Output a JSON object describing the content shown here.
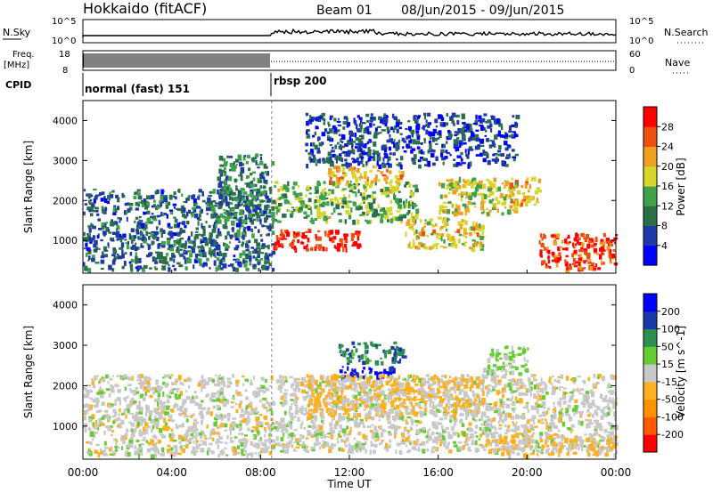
{
  "header": {
    "station": "Hokkaido (fitACF)",
    "beam": "Beam 01",
    "dates": "08/Jun/2015 - 09/Jun/2015"
  },
  "panels": {
    "noise": {
      "left_label": "N.Sky",
      "right_label": "N.Search",
      "left_ticks": [
        "10^5",
        "10^0"
      ],
      "right_ticks": [
        "10^5",
        "10^0"
      ]
    },
    "freq": {
      "label_line1": "Freq.",
      "label_line2": "[MHz]",
      "left_ticks": [
        "18",
        "8"
      ],
      "right_label": "Nave",
      "right_ticks": [
        "60",
        "0"
      ]
    },
    "cpid": {
      "label": "CPID",
      "modes": [
        {
          "name": "normal (fast) 151",
          "start_ut": 0.0
        },
        {
          "name": "rbsp 200",
          "start_ut": 8.5
        }
      ]
    }
  },
  "x_axis": {
    "label": "Time UT",
    "ticks": [
      "00:00",
      "04:00",
      "08:00",
      "12:00",
      "16:00",
      "20:00",
      "00:00"
    ],
    "range_hours": [
      0,
      24
    ]
  },
  "chart_data": [
    {
      "type": "heatmap",
      "title": "",
      "xlabel": "",
      "ylabel": "Slant Range [km]",
      "ylim": [
        180,
        4500
      ],
      "yticks": [
        "1000",
        "2000",
        "3000",
        "4000"
      ],
      "colorbar": {
        "label": "Power [dB]",
        "ticks": [
          "28",
          "24",
          "20",
          "16",
          "12",
          "8",
          "4"
        ],
        "range": [
          0,
          30
        ],
        "colors": [
          "#0000ff",
          "#1e3aa8",
          "#2a6e4a",
          "#3fa24a",
          "#d6d62a",
          "#f0a020",
          "#ee5010",
          "#ff0000"
        ]
      },
      "regions": [
        {
          "ut": [
            0.0,
            8.5
          ],
          "km": [
            300,
            2300
          ],
          "db": 8
        },
        {
          "ut": [
            6.0,
            8.5
          ],
          "km": [
            1500,
            3200
          ],
          "db": 10
        },
        {
          "ut": [
            8.5,
            12.5
          ],
          "km": [
            800,
            1300
          ],
          "db": 28
        },
        {
          "ut": [
            8.5,
            15.0
          ],
          "km": [
            1500,
            2500
          ],
          "db": 14
        },
        {
          "ut": [
            11.0,
            14.5
          ],
          "km": [
            2500,
            2900
          ],
          "db": 20
        },
        {
          "ut": [
            14.5,
            18.0
          ],
          "km": [
            800,
            1600
          ],
          "db": 18
        },
        {
          "ut": [
            16.0,
            19.5
          ],
          "km": [
            1700,
            2600
          ],
          "db": 17
        },
        {
          "ut": [
            19.0,
            20.5
          ],
          "km": [
            1900,
            2600
          ],
          "db": 20
        },
        {
          "ut": [
            20.5,
            24.0
          ],
          "km": [
            300,
            1200
          ],
          "db": 26
        },
        {
          "ut": [
            10.0,
            19.5
          ],
          "km": [
            2900,
            4200
          ],
          "db": 6
        }
      ]
    },
    {
      "type": "heatmap",
      "title": "",
      "xlabel": "Time UT",
      "ylabel": "Slant Range [km]",
      "ylim": [
        180,
        4500
      ],
      "yticks": [
        "1000",
        "2000",
        "3000",
        "4000"
      ],
      "colorbar": {
        "label": "Velocity [m s^-1]",
        "ticks": [
          "200",
          "100",
          "50",
          "15",
          "-15",
          "-50",
          "-100",
          "-200"
        ],
        "range": [
          -250,
          250
        ],
        "colors": [
          "#ff0000",
          "#ff5a00",
          "#ff9000",
          "#ffb020",
          "#c8c8c8",
          "#66cc33",
          "#2f8f4f",
          "#1a3aa8",
          "#0000ff"
        ]
      },
      "regions": [
        {
          "ut": [
            0.0,
            8.5
          ],
          "km": [
            300,
            2300
          ],
          "vel": 0
        },
        {
          "ut": [
            8.5,
            24.0
          ],
          "km": [
            400,
            2300
          ],
          "vel": 0
        },
        {
          "ut": [
            11.5,
            14.0
          ],
          "km": [
            2250,
            2500
          ],
          "vel": 220
        },
        {
          "ut": [
            11.5,
            14.5
          ],
          "km": [
            2600,
            3100
          ],
          "vel": 120
        },
        {
          "ut": [
            18.0,
            20.0
          ],
          "km": [
            2300,
            3000
          ],
          "vel": 40
        },
        {
          "ut": [
            10.0,
            18.0
          ],
          "km": [
            1300,
            2300
          ],
          "vel": -40
        },
        {
          "ut": [
            18.0,
            24.0
          ],
          "km": [
            300,
            800
          ],
          "vel": -30
        }
      ]
    }
  ]
}
